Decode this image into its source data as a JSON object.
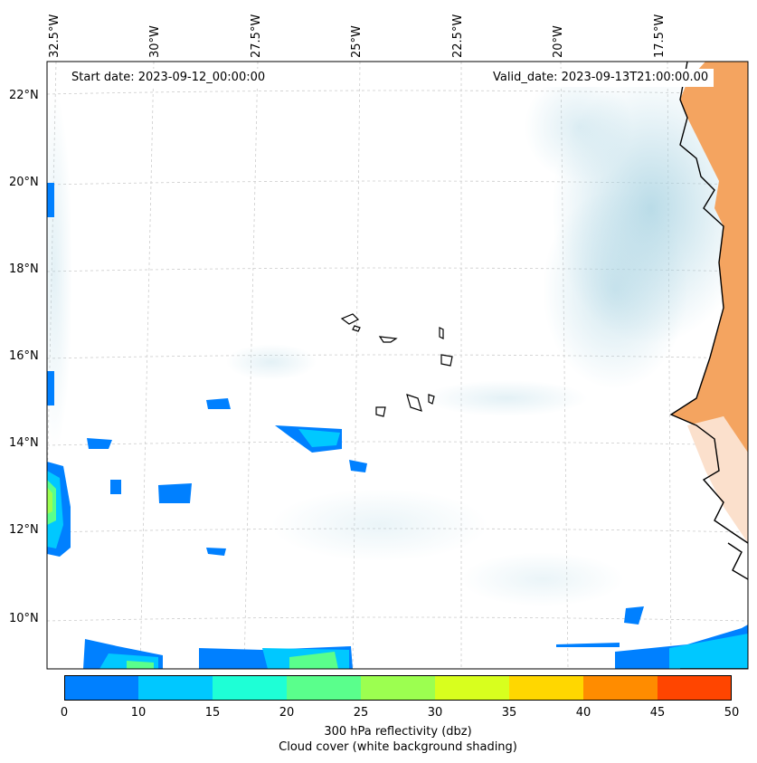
{
  "header": {
    "start_date": "Start date: 2023-09-12_00:00:00",
    "valid_date": "Valid_date: 2023-09-13T21:00:00.00"
  },
  "axes": {
    "lon_labels": [
      "32.5°W",
      "30°W",
      "27.5°W",
      "25°W",
      "22.5°W",
      "20°W",
      "17.5°W"
    ],
    "lat_labels": [
      "22°N",
      "20°N",
      "18°N",
      "16°N",
      "14°N",
      "12°N",
      "10°N"
    ]
  },
  "colorbar": {
    "ticks": [
      "0",
      "10",
      "15",
      "20",
      "25",
      "30",
      "35",
      "40",
      "45",
      "50"
    ],
    "colors": [
      "#0080ff",
      "#00c8ff",
      "#1effd6",
      "#5aff8c",
      "#9cff50",
      "#d8ff1e",
      "#ffd700",
      "#ff8c00",
      "#ff4500"
    ],
    "label_line1": "300 hPa reflectivity (dbz)",
    "label_line2": "Cloud cover (white background shading)"
  },
  "colors": {
    "land_orange": "#f4a460",
    "cloud_shade": "#bfe0ea",
    "coastline": "#000000",
    "gridline": "#cccccc"
  }
}
